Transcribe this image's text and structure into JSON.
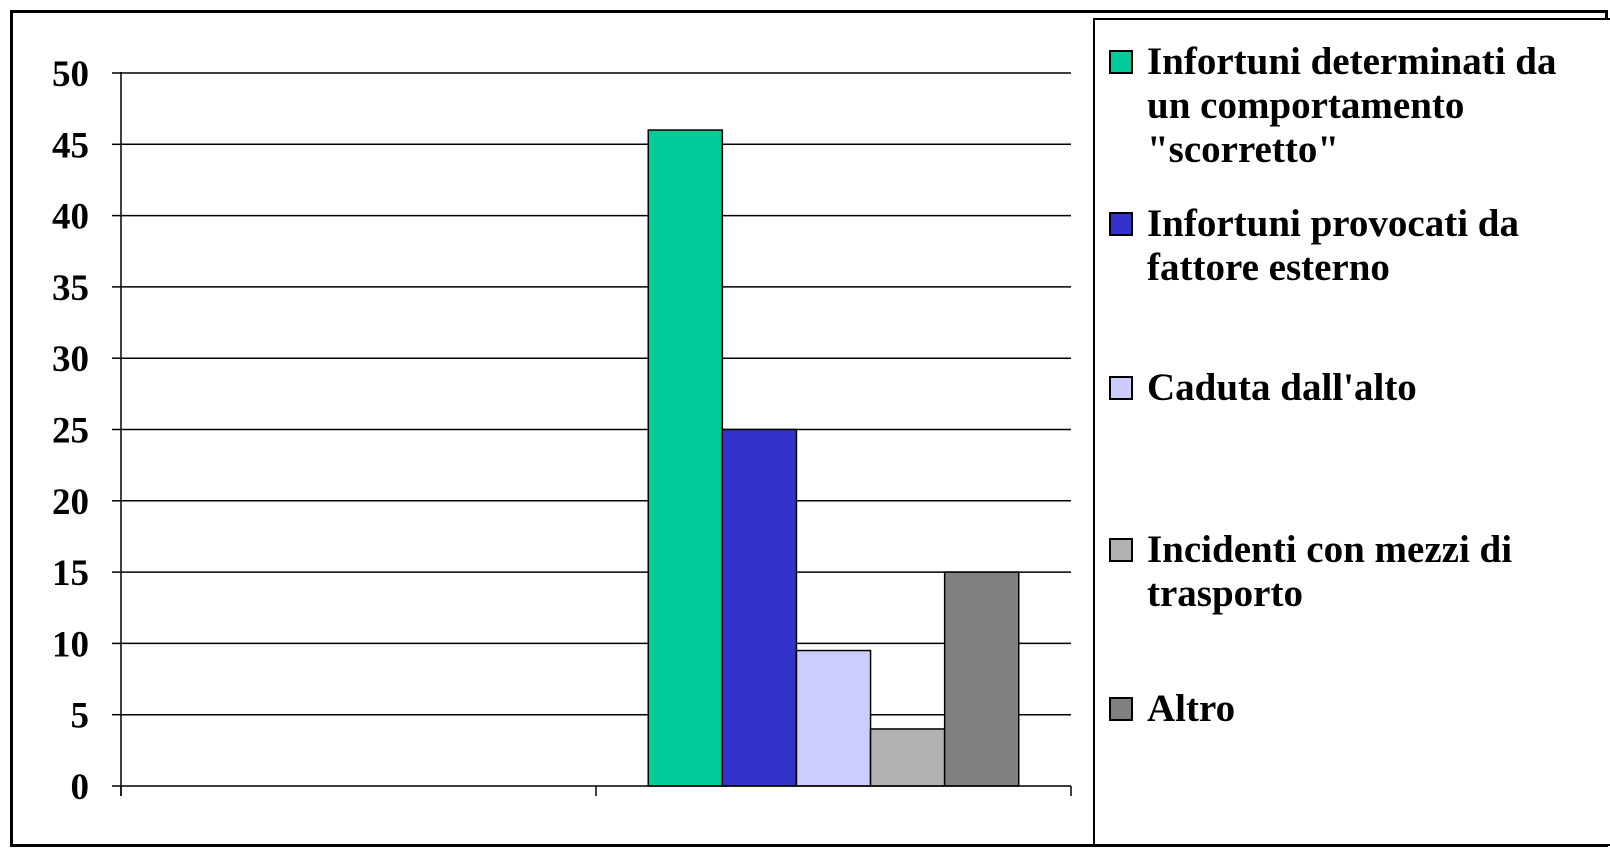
{
  "chart_data": {
    "type": "bar",
    "title": "",
    "xlabel": "",
    "ylabel": "",
    "ylim": [
      0,
      50
    ],
    "ytick_step": 5,
    "yticks": [
      "0",
      "5",
      "10",
      "15",
      "20",
      "25",
      "30",
      "35",
      "40",
      "45",
      "50"
    ],
    "category_count": 2,
    "categories": [
      "",
      ""
    ],
    "grid": true,
    "legend_position": "right",
    "series": [
      {
        "name": "Infortuni determinati da un comportamento \"scorretto\"",
        "color": "#00CC99",
        "values": [
          null,
          46
        ]
      },
      {
        "name": "Infortuni provocati da fattore esterno",
        "color": "#3333CC",
        "values": [
          null,
          25
        ]
      },
      {
        "name": "Caduta dall'alto",
        "color": "#CCCCFF",
        "values": [
          null,
          9.5
        ]
      },
      {
        "name": "Incidenti con mezzi di trasporto",
        "color": "#B2B2B2",
        "values": [
          null,
          4
        ]
      },
      {
        "name": "Altro",
        "color": "#808080",
        "values": [
          null,
          15
        ]
      }
    ]
  }
}
